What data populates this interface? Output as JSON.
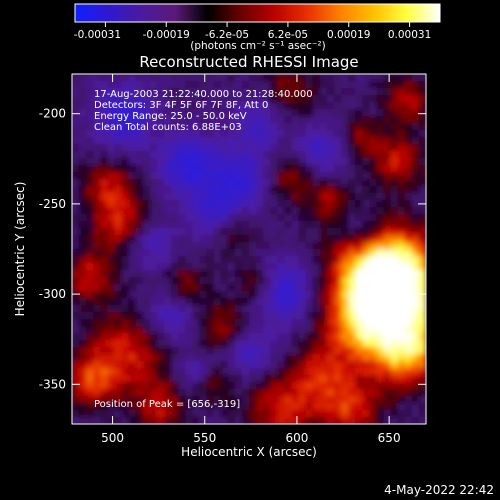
{
  "colorbar": {
    "tick_labels": [
      "-0.00031",
      "-0.00019",
      "-6.2e-05",
      "6.2e-05",
      "0.00019",
      "0.00031"
    ],
    "units_label": "(photons cm⁻² s⁻¹ asec⁻²)",
    "colors": [
      "#1020ff",
      "#3018d0",
      "#4a1aa0",
      "#5c1a78",
      "#000000",
      "#6a0000",
      "#b80000",
      "#e83000",
      "#ff8000",
      "#ffc000",
      "#ffff40",
      "#ffffff"
    ]
  },
  "chart_data": {
    "type": "heatmap",
    "title": "Reconstructed RHESSI Image",
    "xlabel": "Heliocentric X (arcsec)",
    "ylabel": "Heliocentric Y (arcsec)",
    "xlim": [
      478,
      670
    ],
    "ylim": [
      -372,
      -178
    ],
    "xticks": [
      500,
      550,
      600,
      650
    ],
    "yticks": [
      -200,
      -250,
      -300,
      -350
    ],
    "value_range": [
      -0.00031,
      0.00031
    ],
    "peak": [
      656,
      -319
    ],
    "grid": false
  },
  "annotations": {
    "time_range": "17-Aug-2003 21:22:40.000 to 21:28:40.000",
    "detectors": "Detectors: 3F 4F 5F 6F 7F 8F, Att 0",
    "energy_range": "Energy Range: 25.0 - 50.0 keV",
    "clean_counts": "Clean    Total counts: 6.88E+03",
    "peak_position": "Position of Peak = [656,-319]"
  },
  "footer": {
    "date": "4-May-2022 22:42"
  }
}
